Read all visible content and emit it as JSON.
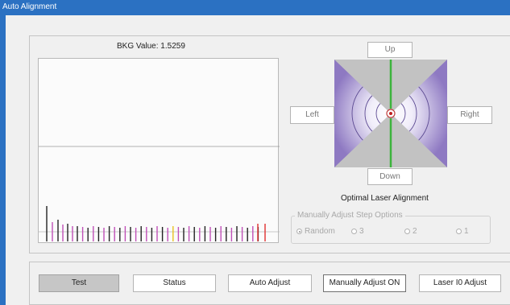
{
  "window": {
    "title": "Auto Alignment"
  },
  "bkg": {
    "label": "BKG Value:",
    "value": "1.5259"
  },
  "directions": {
    "up": "Up",
    "left": "Left",
    "right": "Right",
    "down": "Down"
  },
  "target_caption": "Optimal Laser Alignment",
  "step_options": {
    "legend": "Manually Adjust Step Options",
    "options": [
      "Random",
      "3",
      "2",
      "1"
    ],
    "selected": "Random"
  },
  "buttons": {
    "test": "Test",
    "status": "Status",
    "auto_adjust": "Auto Adjust",
    "manually_adjust": "Manually Adjust ON",
    "laser_adjust": "Laser I0 Adjust"
  },
  "colors": {
    "title_bar": "#2b71c2",
    "spike_black": "#222222",
    "spike_magenta": "#c050b8",
    "spike_yellow": "#e8c020",
    "spike_red": "#e03030",
    "axis_green": "#3cb43c",
    "target_purple": "#9a86c8"
  }
}
